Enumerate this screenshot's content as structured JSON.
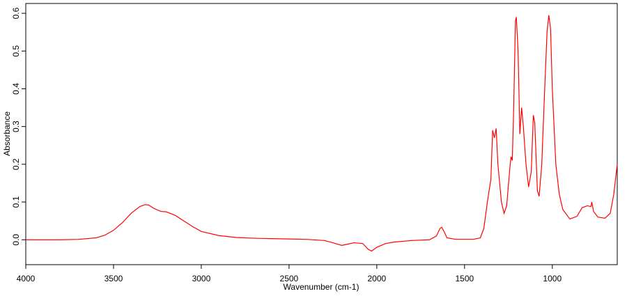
{
  "chart_data": {
    "type": "line",
    "x_label": "Wavenumber (cm-1)",
    "y_label": "Absorbance",
    "xlim": [
      4000,
      630
    ],
    "ylim": [
      -0.066,
      0.626
    ],
    "xticks": [
      4000,
      3500,
      3000,
      2500,
      2000,
      1500,
      1000
    ],
    "yticks": [
      {
        "value": 0,
        "label": "0.0"
      },
      0.1,
      0.2,
      0.3,
      0.4,
      0.5,
      0.6
    ],
    "series": [
      {
        "color": "#ff0000",
        "x": [
          4000,
          3800,
          3700,
          3600,
          3550,
          3500,
          3450,
          3400,
          3350,
          3320,
          3300,
          3270,
          3230,
          3200,
          3150,
          3100,
          3050,
          3000,
          2900,
          2800,
          2700,
          2600,
          2500,
          2400,
          2300,
          2250,
          2200,
          2170,
          2130,
          2080,
          2050,
          2030,
          2000,
          1950,
          1900,
          1800,
          1700,
          1660,
          1640,
          1630,
          1615,
          1600,
          1550,
          1450,
          1410,
          1390,
          1370,
          1350,
          1340,
          1330,
          1320,
          1310,
          1290,
          1275,
          1260,
          1240,
          1235,
          1228,
          1220,
          1210,
          1205,
          1195,
          1185,
          1175,
          1165,
          1150,
          1135,
          1120,
          1108,
          1100,
          1085,
          1075,
          1060,
          1045,
          1030,
          1020,
          1010,
          1000,
          980,
          960,
          940,
          900,
          860,
          830,
          800,
          780,
          775,
          765,
          740,
          700,
          670,
          650,
          630
        ],
        "values": [
          0,
          0,
          0.001,
          0.005,
          0.012,
          0.025,
          0.045,
          0.07,
          0.088,
          0.093,
          0.092,
          0.083,
          0.075,
          0.074,
          0.065,
          0.05,
          0.035,
          0.022,
          0.011,
          0.006,
          0.004,
          0.003,
          0.002,
          0.001,
          -0.002,
          -0.008,
          -0.015,
          -0.012,
          -0.008,
          -0.01,
          -0.025,
          -0.03,
          -0.02,
          -0.01,
          -0.006,
          -0.002,
          0,
          0.01,
          0.03,
          0.033,
          0.02,
          0.005,
          0.001,
          0.001,
          0.005,
          0.03,
          0.1,
          0.16,
          0.29,
          0.27,
          0.295,
          0.2,
          0.1,
          0.07,
          0.09,
          0.2,
          0.22,
          0.21,
          0.35,
          0.58,
          0.59,
          0.5,
          0.28,
          0.35,
          0.3,
          0.2,
          0.14,
          0.18,
          0.33,
          0.31,
          0.13,
          0.115,
          0.2,
          0.38,
          0.55,
          0.595,
          0.56,
          0.4,
          0.2,
          0.12,
          0.08,
          0.055,
          0.062,
          0.085,
          0.09,
          0.088,
          0.1,
          0.075,
          0.06,
          0.057,
          0.07,
          0.12,
          0.2
        ]
      }
    ]
  }
}
